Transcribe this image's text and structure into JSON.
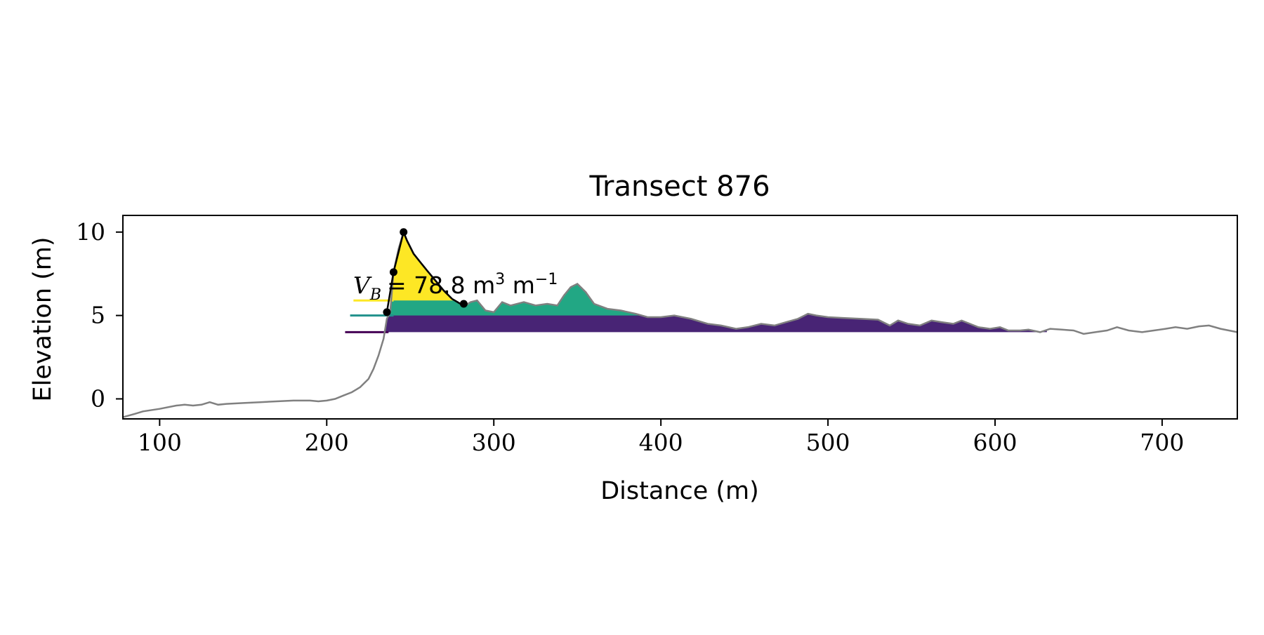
{
  "chart_data": {
    "type": "area",
    "title": "Transect 876",
    "xlabel": "Distance (m)",
    "ylabel": "Elevation (m)",
    "xlim": [
      78,
      745
    ],
    "ylim": [
      -1.2,
      11.0
    ],
    "x_ticks": [
      100,
      200,
      300,
      400,
      500,
      600,
      700
    ],
    "y_ticks": [
      0,
      5,
      10
    ],
    "grid": false,
    "annotation": {
      "symbol_main": "V",
      "symbol_sub": "B",
      "rest": "= 78.8 m",
      "unit_sup": "3",
      "unit_tail": " m",
      "unit_tail_sup": "−1"
    },
    "profile": {
      "name": "",
      "color": "#808080",
      "points": [
        [
          78,
          -1.1
        ],
        [
          85,
          -0.9
        ],
        [
          90,
          -0.75
        ],
        [
          100,
          -0.6
        ],
        [
          110,
          -0.4
        ],
        [
          115,
          -0.35
        ],
        [
          120,
          -0.4
        ],
        [
          125,
          -0.35
        ],
        [
          130,
          -0.2
        ],
        [
          135,
          -0.35
        ],
        [
          140,
          -0.3
        ],
        [
          150,
          -0.25
        ],
        [
          160,
          -0.2
        ],
        [
          170,
          -0.15
        ],
        [
          180,
          -0.1
        ],
        [
          190,
          -0.1
        ],
        [
          195,
          -0.15
        ],
        [
          200,
          -0.1
        ],
        [
          205,
          0.0
        ],
        [
          210,
          0.2
        ],
        [
          215,
          0.4
        ],
        [
          220,
          0.7
        ],
        [
          225,
          1.2
        ],
        [
          228,
          1.8
        ],
        [
          231,
          2.6
        ],
        [
          234,
          3.6
        ],
        [
          236,
          4.8
        ],
        [
          238,
          5.2
        ],
        [
          240,
          7.6
        ],
        [
          243,
          9.0
        ],
        [
          246,
          10.0
        ],
        [
          248,
          9.5
        ],
        [
          252,
          8.7
        ],
        [
          256,
          8.2
        ],
        [
          260,
          7.7
        ],
        [
          265,
          7.1
        ],
        [
          270,
          6.5
        ],
        [
          275,
          6.0
        ],
        [
          280,
          5.7
        ],
        [
          283,
          5.6
        ],
        [
          286,
          5.8
        ],
        [
          290,
          5.9
        ],
        [
          295,
          5.3
        ],
        [
          300,
          5.2
        ],
        [
          305,
          5.8
        ],
        [
          310,
          5.6
        ],
        [
          318,
          5.8
        ],
        [
          325,
          5.6
        ],
        [
          332,
          5.7
        ],
        [
          338,
          5.6
        ],
        [
          342,
          6.2
        ],
        [
          346,
          6.7
        ],
        [
          350,
          6.9
        ],
        [
          355,
          6.4
        ],
        [
          360,
          5.7
        ],
        [
          368,
          5.4
        ],
        [
          376,
          5.3
        ],
        [
          385,
          5.1
        ],
        [
          392,
          4.9
        ],
        [
          400,
          4.9
        ],
        [
          408,
          5.0
        ],
        [
          418,
          4.8
        ],
        [
          428,
          4.5
        ],
        [
          436,
          4.4
        ],
        [
          445,
          4.2
        ],
        [
          452,
          4.3
        ],
        [
          460,
          4.5
        ],
        [
          468,
          4.4
        ],
        [
          475,
          4.6
        ],
        [
          482,
          4.8
        ],
        [
          488,
          5.1
        ],
        [
          493,
          5.0
        ],
        [
          500,
          4.9
        ],
        [
          510,
          4.85
        ],
        [
          520,
          4.8
        ],
        [
          530,
          4.75
        ],
        [
          537,
          4.4
        ],
        [
          542,
          4.7
        ],
        [
          548,
          4.5
        ],
        [
          555,
          4.4
        ],
        [
          562,
          4.7
        ],
        [
          568,
          4.6
        ],
        [
          575,
          4.5
        ],
        [
          580,
          4.7
        ],
        [
          585,
          4.5
        ],
        [
          590,
          4.3
        ],
        [
          597,
          4.2
        ],
        [
          603,
          4.3
        ],
        [
          608,
          4.1
        ],
        [
          615,
          4.1
        ],
        [
          620,
          4.15
        ],
        [
          627,
          4.0
        ],
        [
          633,
          4.2
        ],
        [
          640,
          4.15
        ],
        [
          647,
          4.1
        ],
        [
          653,
          3.9
        ],
        [
          660,
          4.0
        ],
        [
          667,
          4.1
        ],
        [
          673,
          4.3
        ],
        [
          680,
          4.1
        ],
        [
          688,
          4.0
        ],
        [
          695,
          4.1
        ],
        [
          702,
          4.2
        ],
        [
          708,
          4.3
        ],
        [
          715,
          4.2
        ],
        [
          722,
          4.35
        ],
        [
          728,
          4.4
        ],
        [
          735,
          4.2
        ],
        [
          745,
          4.0
        ]
      ]
    },
    "bands": [
      {
        "color": "#440154",
        "fill": "#482475",
        "level": 4.0,
        "x_start": 235,
        "x_end": 631,
        "line_x_start": 211
      },
      {
        "color": "#21918c",
        "fill": "#22a784",
        "level": 5.0,
        "x_start": 238,
        "x_end": 388,
        "line_x_start": 214
      },
      {
        "color": "#fde725",
        "fill": "#fde725",
        "level": 5.9,
        "x_start": 238,
        "x_end": 277,
        "line_x_start": 216
      }
    ],
    "markers": {
      "color": "#000000",
      "points": [
        [
          236,
          5.2
        ],
        [
          240,
          7.6
        ],
        [
          246,
          10.0
        ],
        [
          282,
          5.7
        ]
      ]
    }
  }
}
